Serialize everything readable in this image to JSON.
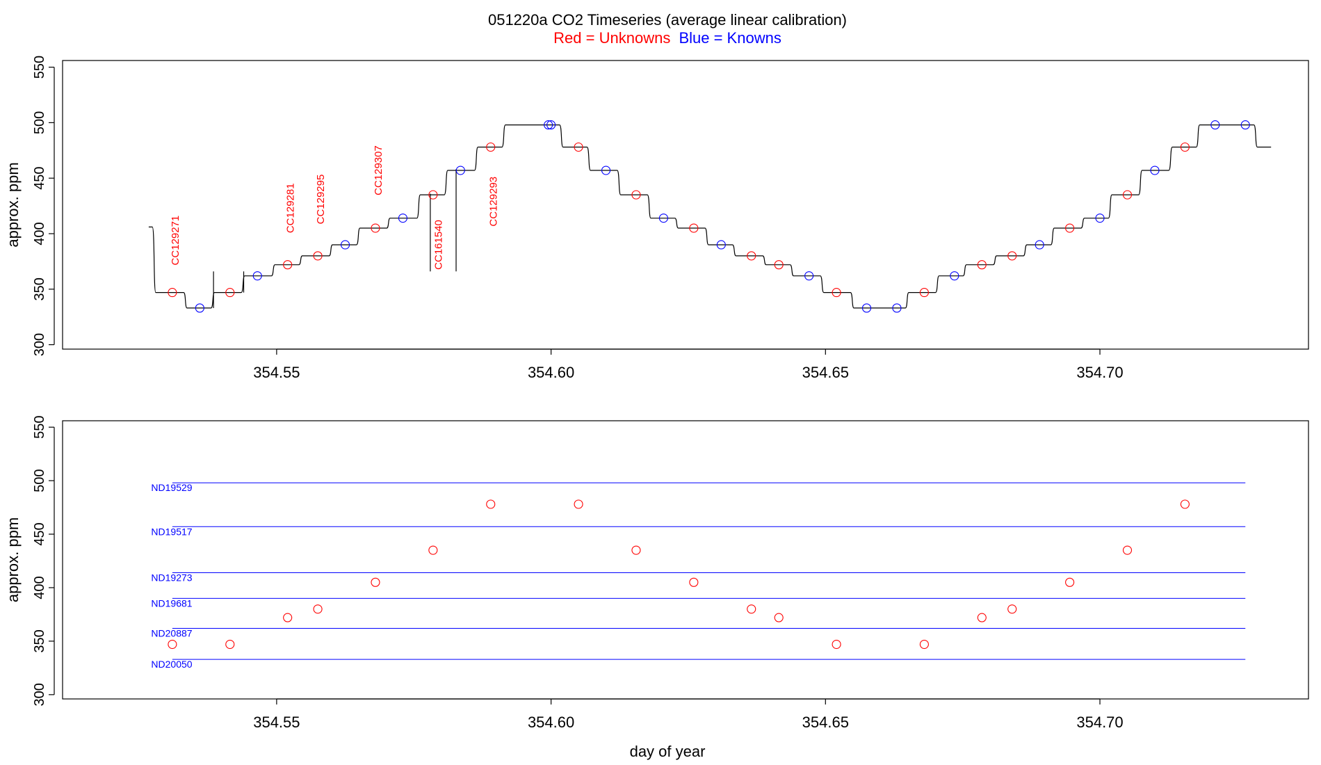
{
  "title": "051220a   CO2 Timeseries (average linear calibration)",
  "subtitle": {
    "red_text": "Red = Unknowns",
    "blue_text": "Blue = Knowns"
  },
  "colors": {
    "unknowns": "#ff0000",
    "knowns": "#0000ff",
    "trace": "#000000",
    "axis": "#000000"
  },
  "chart_data": [
    {
      "type": "line",
      "panel": "top",
      "ylabel": "approx. ppm",
      "xlabel": "",
      "xlim": [
        354.511,
        354.738
      ],
      "ylim": [
        296,
        556
      ],
      "xticks": [
        354.55,
        354.6,
        354.65,
        354.7
      ],
      "xtick_labels": [
        "354.55",
        "354.60",
        "354.65",
        "354.70"
      ],
      "yticks": [
        300,
        350,
        400,
        450,
        500,
        550
      ],
      "ytick_labels": [
        "300",
        "350",
        "400",
        "450",
        "500",
        "550"
      ],
      "series": [
        {
          "role": "trace",
          "levels": [
            [
              354.5267,
              406
            ],
            [
              354.5278,
              347
            ],
            [
              354.5335,
              333
            ],
            [
              354.5385,
              347
            ],
            [
              354.544,
              362
            ],
            [
              354.5495,
              372
            ],
            [
              354.5545,
              380
            ],
            [
              354.56,
              390
            ],
            [
              354.565,
              405
            ],
            [
              354.5705,
              414
            ],
            [
              354.576,
              435
            ],
            [
              354.581,
              457
            ],
            [
              354.5865,
              478
            ],
            [
              354.5915,
              498
            ],
            [
              354.602,
              478
            ],
            [
              354.607,
              457
            ],
            [
              354.6125,
              435
            ],
            [
              354.618,
              414
            ],
            [
              354.623,
              405
            ],
            [
              354.6285,
              390
            ],
            [
              354.6335,
              380
            ],
            [
              354.639,
              372
            ],
            [
              354.644,
              362
            ],
            [
              354.6495,
              347
            ],
            [
              354.655,
              333
            ],
            [
              354.665,
              347
            ],
            [
              354.6705,
              362
            ],
            [
              354.6755,
              372
            ],
            [
              354.681,
              380
            ],
            [
              354.6865,
              390
            ],
            [
              354.6915,
              405
            ],
            [
              354.697,
              414
            ],
            [
              354.702,
              435
            ],
            [
              354.7075,
              457
            ],
            [
              354.713,
              478
            ],
            [
              354.718,
              498
            ],
            [
              354.7285,
              478
            ],
            [
              354.731,
              478
            ]
          ],
          "spikes": [
            {
              "x": 354.5385,
              "y0": 333,
              "y1": 366
            },
            {
              "x": 354.544,
              "y0": 347,
              "y1": 366
            },
            {
              "x": 354.578,
              "y0": 366,
              "y1": 436
            },
            {
              "x": 354.5827,
              "y0": 366,
              "y1": 458
            }
          ]
        },
        {
          "role": "unknowns",
          "x": [
            354.531,
            354.5415,
            354.552,
            354.5575,
            354.568,
            354.5785,
            354.589,
            354.605,
            354.6155,
            354.626,
            354.6365,
            354.6415,
            354.652,
            354.668,
            354.6785,
            354.684,
            354.6945,
            354.705,
            354.7155
          ],
          "y": [
            347,
            347,
            372,
            380,
            405,
            435,
            478,
            478,
            435,
            405,
            380,
            372,
            347,
            347,
            372,
            380,
            405,
            435,
            478
          ]
        },
        {
          "role": "knowns",
          "x": [
            354.536,
            354.5465,
            354.5625,
            354.573,
            354.5835,
            354.5995,
            354.6,
            354.61,
            354.6205,
            354.631,
            354.647,
            354.6575,
            354.663,
            354.6735,
            354.689,
            354.7,
            354.71,
            354.721,
            354.7265
          ],
          "y": [
            333,
            362,
            390,
            414,
            457,
            498,
            498,
            457,
            414,
            390,
            362,
            333,
            333,
            362,
            390,
            414,
            457,
            498,
            498
          ]
        }
      ],
      "annotations": [
        {
          "text": "CC129271",
          "x": 354.5315,
          "y": 394
        },
        {
          "text": "CC129281",
          "x": 354.5525,
          "y": 423
        },
        {
          "text": "CC129295",
          "x": 354.558,
          "y": 431
        },
        {
          "text": "CC129307",
          "x": 354.5685,
          "y": 457
        },
        {
          "text": "CC161540",
          "x": 354.5795,
          "y": 390
        },
        {
          "text": "CC129293",
          "x": 354.5895,
          "y": 429
        }
      ]
    },
    {
      "type": "scatter",
      "panel": "bottom",
      "ylabel": "approx. ppm",
      "xlabel": "day of year",
      "xlim": [
        354.511,
        354.738
      ],
      "ylim": [
        296,
        556
      ],
      "xticks": [
        354.55,
        354.6,
        354.65,
        354.7
      ],
      "xtick_labels": [
        "354.55",
        "354.60",
        "354.65",
        "354.70"
      ],
      "yticks": [
        300,
        350,
        400,
        450,
        500,
        550
      ],
      "ytick_labels": [
        "300",
        "350",
        "400",
        "450",
        "500",
        "550"
      ],
      "reference_lines": [
        {
          "name": "ND19529",
          "y": 498
        },
        {
          "name": "ND19517",
          "y": 457
        },
        {
          "name": "ND19273",
          "y": 414
        },
        {
          "name": "ND19681",
          "y": 390
        },
        {
          "name": "ND20887",
          "y": 362
        },
        {
          "name": "ND20050",
          "y": 333
        }
      ],
      "reference_x_range": [
        354.531,
        354.7265
      ],
      "series": [
        {
          "role": "unknowns",
          "x": [
            354.531,
            354.5415,
            354.552,
            354.5575,
            354.568,
            354.5785,
            354.589,
            354.605,
            354.6155,
            354.626,
            354.6365,
            354.6415,
            354.652,
            354.668,
            354.6785,
            354.684,
            354.6945,
            354.705,
            354.7155
          ],
          "y": [
            347,
            347,
            372,
            380,
            405,
            435,
            478,
            478,
            435,
            405,
            380,
            372,
            347,
            347,
            372,
            380,
            405,
            435,
            478
          ]
        }
      ]
    }
  ]
}
